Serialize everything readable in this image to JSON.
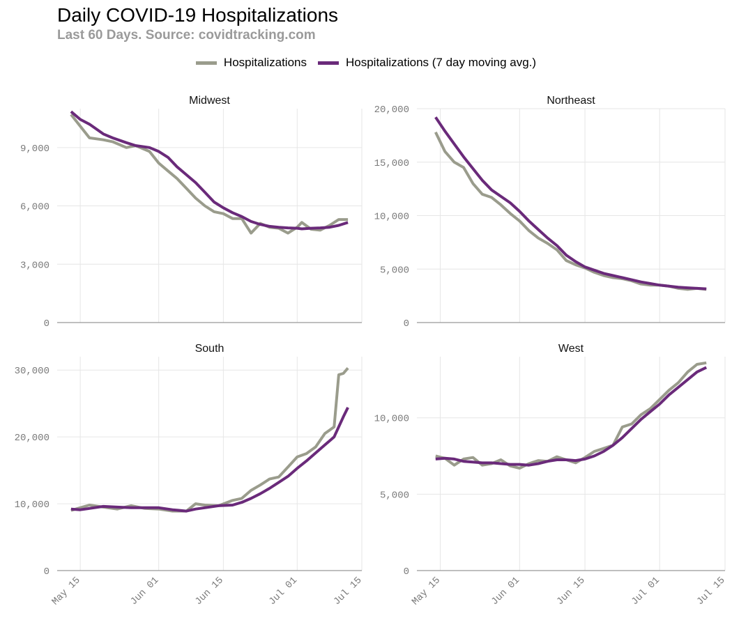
{
  "title": "Daily COVID-19 Hospitalizations",
  "subtitle": "Last 60 Days. Source: covidtracking.com",
  "colors": {
    "raw": "#9a9c8c",
    "avg": "#6a2a7a",
    "grid": "#e6e6e6",
    "baseline": "#999999"
  },
  "legend": [
    {
      "label": "Hospitalizations",
      "color": "#9a9c8c"
    },
    {
      "label": "Hospitalizations (7 day moving avg.)",
      "color": "#6a2a7a"
    }
  ],
  "chart_data": {
    "type": "line",
    "facets": [
      {
        "name": "Midwest",
        "ylim": [
          0,
          11000
        ],
        "yticks": [
          "0",
          "3,000",
          "6,000",
          "9,000"
        ],
        "yticks_values": [
          0,
          3000,
          6000,
          9000
        ],
        "x_dates": [
          "2020-05-13",
          "2020-05-15",
          "2020-05-17",
          "2020-05-20",
          "2020-05-22",
          "2020-05-25",
          "2020-05-27",
          "2020-05-30",
          "2020-06-01",
          "2020-06-03",
          "2020-06-05",
          "2020-06-07",
          "2020-06-09",
          "2020-06-11",
          "2020-06-13",
          "2020-06-15",
          "2020-06-17",
          "2020-06-19",
          "2020-06-21",
          "2020-06-23",
          "2020-06-25",
          "2020-06-27",
          "2020-06-29",
          "2020-07-01",
          "2020-07-02",
          "2020-07-04",
          "2020-07-06",
          "2020-07-08",
          "2020-07-10",
          "2020-07-12"
        ],
        "series": [
          {
            "name": "Hospitalizations",
            "values": [
              10700,
              10100,
              9500,
              9400,
              9300,
              9000,
              9100,
              8800,
              8200,
              7800,
              7400,
              6900,
              6400,
              6000,
              5700,
              5600,
              5350,
              5350,
              4600,
              5100,
              4900,
              4850,
              4600,
              4900,
              5150,
              4800,
              4750,
              5000,
              5300,
              5300
            ]
          },
          {
            "name": "Hospitalizations (7 day moving avg.)",
            "values": [
              10850,
              10450,
              10200,
              9700,
              9500,
              9250,
              9100,
              9000,
              8800,
              8500,
              8000,
              7600,
              7200,
              6700,
              6200,
              5900,
              5650,
              5450,
              5200,
              5050,
              4950,
              4900,
              4870,
              4850,
              4820,
              4850,
              4870,
              4900,
              5000,
              5150
            ]
          }
        ]
      },
      {
        "name": "Northeast",
        "ylim": [
          0,
          20000
        ],
        "yticks": [
          "0",
          "5,000",
          "10,000",
          "15,000",
          "20,000"
        ],
        "yticks_values": [
          0,
          5000,
          10000,
          15000,
          20000
        ],
        "x_dates": [
          "2020-05-14",
          "2020-05-16",
          "2020-05-18",
          "2020-05-20",
          "2020-05-22",
          "2020-05-24",
          "2020-05-26",
          "2020-05-28",
          "2020-05-30",
          "2020-06-01",
          "2020-06-03",
          "2020-06-05",
          "2020-06-07",
          "2020-06-09",
          "2020-06-11",
          "2020-06-13",
          "2020-06-15",
          "2020-06-17",
          "2020-06-19",
          "2020-06-21",
          "2020-06-23",
          "2020-06-25",
          "2020-06-27",
          "2020-06-29",
          "2020-07-01",
          "2020-07-03",
          "2020-07-05",
          "2020-07-07",
          "2020-07-09",
          "2020-07-11"
        ],
        "series": [
          {
            "name": "Hospitalizations",
            "values": [
              17800,
              16000,
              15000,
              14500,
              13000,
              12000,
              11700,
              11000,
              10200,
              9500,
              8600,
              7900,
              7400,
              6800,
              5800,
              5400,
              5100,
              4700,
              4400,
              4200,
              4100,
              3900,
              3600,
              3500,
              3500,
              3400,
              3200,
              3100,
              3200,
              3100
            ]
          },
          {
            "name": "Hospitalizations (7 day moving avg.)",
            "values": [
              19200,
              17900,
              16700,
              15500,
              14400,
              13300,
              12400,
              11800,
              11200,
              10400,
              9500,
              8700,
              7900,
              7200,
              6300,
              5700,
              5200,
              4900,
              4600,
              4400,
              4200,
              4000,
              3800,
              3650,
              3500,
              3400,
              3300,
              3250,
              3200,
              3150
            ]
          }
        ]
      },
      {
        "name": "South",
        "ylim": [
          0,
          32000
        ],
        "yticks": [
          "0",
          "10,000",
          "20,000",
          "30,000"
        ],
        "yticks_values": [
          0,
          10000,
          20000,
          30000
        ],
        "x_dates": [
          "2020-05-13",
          "2020-05-15",
          "2020-05-17",
          "2020-05-20",
          "2020-05-23",
          "2020-05-26",
          "2020-05-29",
          "2020-06-01",
          "2020-06-04",
          "2020-06-07",
          "2020-06-09",
          "2020-06-11",
          "2020-06-14",
          "2020-06-17",
          "2020-06-19",
          "2020-06-21",
          "2020-06-23",
          "2020-06-25",
          "2020-06-27",
          "2020-06-29",
          "2020-07-01",
          "2020-07-03",
          "2020-07-05",
          "2020-07-07",
          "2020-07-08",
          "2020-07-09",
          "2020-07-10",
          "2020-07-11",
          "2020-07-12"
        ],
        "series": [
          {
            "name": "Hospitalizations",
            "values": [
              9000,
              9400,
              9800,
              9500,
              9200,
              9700,
              9300,
              9200,
              8900,
              8900,
              10000,
              9800,
              9700,
              10500,
              10800,
              12000,
              12800,
              13700,
              14000,
              15500,
              17000,
              17500,
              18500,
              20500,
              21000,
              21500,
              29300,
              29500,
              30300
            ]
          },
          {
            "name": "Hospitalizations (7 day moving avg.)",
            "values": [
              9200,
              9100,
              9300,
              9600,
              9500,
              9400,
              9400,
              9400,
              9100,
              8900,
              9200,
              9400,
              9700,
              9800,
              10200,
              10800,
              11500,
              12300,
              13200,
              14100,
              15300,
              16400,
              17600,
              18800,
              19400,
              20000,
              21500,
              23000,
              24400
            ]
          }
        ]
      },
      {
        "name": "West",
        "ylim": [
          0,
          14000
        ],
        "yticks": [
          "0",
          "5,000",
          "10,000"
        ],
        "yticks_values": [
          0,
          5000,
          10000
        ],
        "x_dates": [
          "2020-05-14",
          "2020-05-16",
          "2020-05-18",
          "2020-05-20",
          "2020-05-22",
          "2020-05-24",
          "2020-05-26",
          "2020-05-28",
          "2020-05-30",
          "2020-06-01",
          "2020-06-03",
          "2020-06-05",
          "2020-06-07",
          "2020-06-09",
          "2020-06-11",
          "2020-06-13",
          "2020-06-15",
          "2020-06-17",
          "2020-06-19",
          "2020-06-21",
          "2020-06-23",
          "2020-06-25",
          "2020-06-27",
          "2020-06-29",
          "2020-07-01",
          "2020-07-03",
          "2020-07-05",
          "2020-07-07",
          "2020-07-09",
          "2020-07-11"
        ],
        "series": [
          {
            "name": "Hospitalizations",
            "values": [
              7500,
              7350,
              6900,
              7300,
              7400,
              6900,
              7000,
              7250,
              6850,
              6700,
              7000,
              7200,
              7150,
              7450,
              7250,
              7050,
              7400,
              7800,
              8000,
              8200,
              9400,
              9600,
              10200,
              10600,
              11200,
              11800,
              12300,
              13000,
              13500,
              13600
            ]
          },
          {
            "name": "Hospitalizations (7 day moving avg.)",
            "values": [
              7300,
              7350,
              7300,
              7150,
              7100,
              7050,
              7050,
              7000,
              6950,
              6950,
              6900,
              7000,
              7150,
              7250,
              7250,
              7200,
              7300,
              7500,
              7800,
              8200,
              8700,
              9300,
              9900,
              10400,
              10900,
              11500,
              12000,
              12500,
              13000,
              13300
            ]
          }
        ]
      }
    ],
    "xlim": [
      "2020-05-10",
      "2020-07-15"
    ],
    "xticks": [
      "May 15",
      "Jun 01",
      "Jun 15",
      "Jul 01",
      "Jul 15"
    ],
    "xticks_dates": [
      "2020-05-15",
      "2020-06-01",
      "2020-06-15",
      "2020-07-01",
      "2020-07-15"
    ],
    "grid": true,
    "legend_position": "top"
  }
}
